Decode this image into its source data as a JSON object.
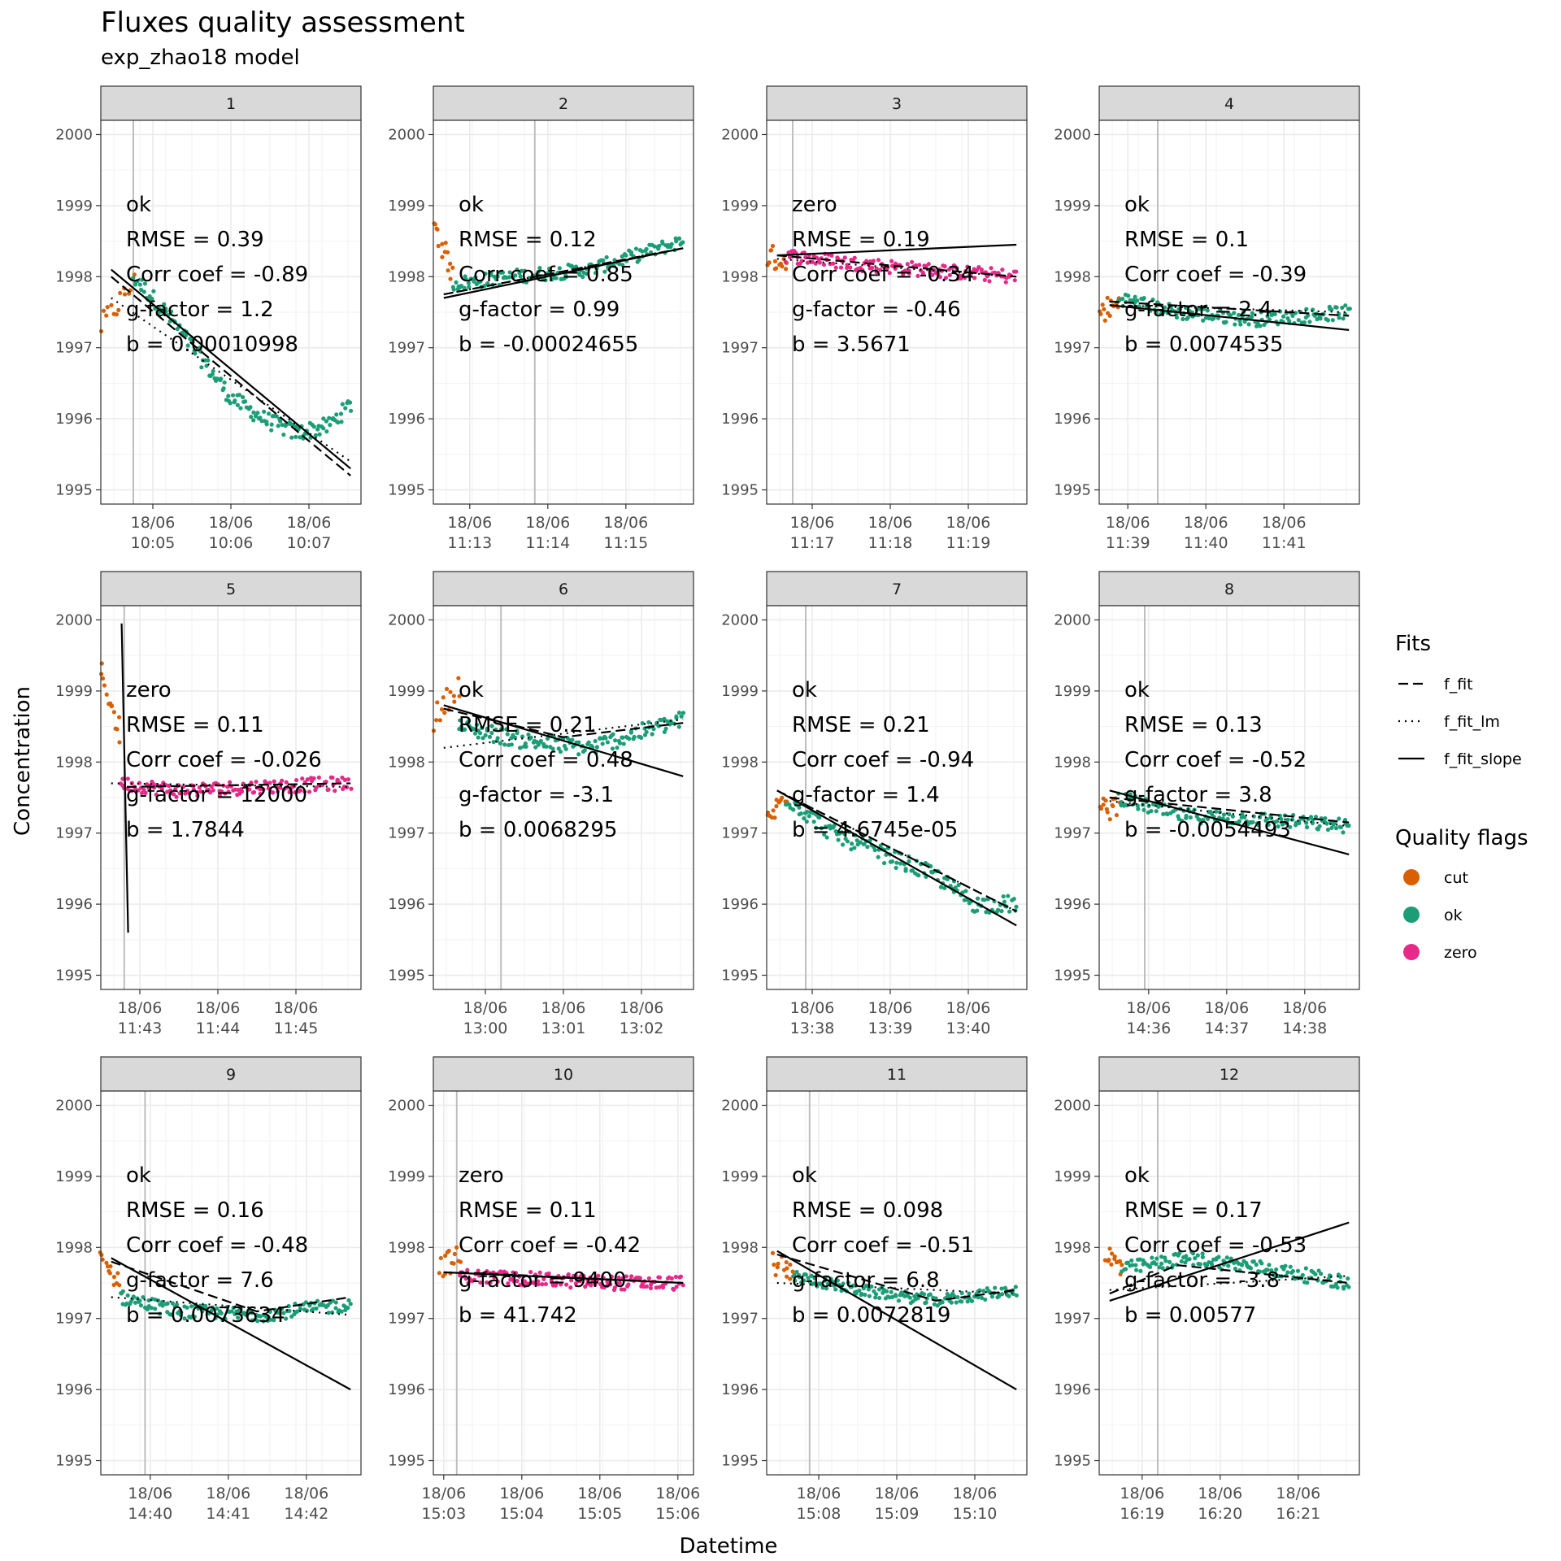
{
  "title": "Fluxes quality assessment",
  "subtitle": "exp_zhao18 model",
  "xlabel": "Datetime",
  "ylabel": "Concentration",
  "legend": {
    "fits_title": "Fits",
    "fits": [
      {
        "name": "f_fit",
        "style": "dashed"
      },
      {
        "name": "f_fit_lm",
        "style": "dotted"
      },
      {
        "name": "f_fit_slope",
        "style": "solid"
      }
    ],
    "flags_title": "Quality flags",
    "flags": [
      {
        "name": "cut",
        "color": "#D95F02"
      },
      {
        "name": "ok",
        "color": "#1B9E77"
      },
      {
        "name": "zero",
        "color": "#E7298A"
      }
    ]
  },
  "chart_data": {
    "type": "scatter",
    "facets": 12,
    "ylim": [
      1994.8,
      2000.2
    ],
    "yticks": [
      1995,
      1996,
      1997,
      1998,
      1999,
      2000
    ],
    "grid": true,
    "legend_position": "right",
    "panels": [
      {
        "id": "1",
        "flag": "ok",
        "rmse": "RMSE = 0.39",
        "corr": "Corr coef = -0.89",
        "g": "g-factor = 1.2",
        "b": "b = 0.00010998",
        "x_range": [
          0,
          200
        ],
        "ticks": [
          {
            "x": 40,
            "date": "18/06",
            "time": "10:05"
          },
          {
            "x": 100,
            "date": "18/06",
            "time": "10:06"
          },
          {
            "x": 160,
            "date": "18/06",
            "time": "10:07"
          }
        ],
        "start_cut": 25,
        "cut_trend": [
          [
            0,
            1997.3
          ],
          [
            25,
            1997.9
          ]
        ],
        "trend": [
          [
            25,
            1998.0
          ],
          [
            50,
            1997.5
          ],
          [
            75,
            1996.9
          ],
          [
            100,
            1996.3
          ],
          [
            125,
            1996.0
          ],
          [
            150,
            1995.8
          ],
          [
            175,
            1995.9
          ],
          [
            192,
            1996.2
          ]
        ],
        "noise": 0.12,
        "f_fit": [
          [
            8,
            1998.0
          ],
          [
            192,
            1995.2
          ]
        ],
        "f_fit_lm": [
          [
            8,
            1997.7
          ],
          [
            192,
            1995.4
          ]
        ],
        "f_fit_slope": [
          [
            8,
            1998.1
          ],
          [
            192,
            1995.3
          ]
        ]
      },
      {
        "id": "2",
        "flag": "ok",
        "rmse": "RMSE = 0.12",
        "corr": "Corr coef = 0.85",
        "g": "g-factor = 0.99",
        "b": "b = -0.00024655",
        "x_range": [
          0,
          200
        ],
        "ticks": [
          {
            "x": 28,
            "date": "18/06",
            "time": "11:13"
          },
          {
            "x": 88,
            "date": "18/06",
            "time": "11:14"
          },
          {
            "x": 148,
            "date": "18/06",
            "time": "11:15"
          }
        ],
        "start_cut": 78,
        "cut_trend": [
          [
            0,
            1998.8
          ],
          [
            15,
            1998.0
          ]
        ],
        "trend": [
          [
            15,
            1997.9
          ],
          [
            60,
            1998.0
          ],
          [
            120,
            1998.1
          ],
          [
            192,
            1998.5
          ]
        ],
        "noise": 0.1,
        "f_fit": [
          [
            8,
            1997.75
          ],
          [
            192,
            1998.4
          ]
        ],
        "f_fit_lm": [
          [
            8,
            1997.75
          ],
          [
            192,
            1998.4
          ]
        ],
        "f_fit_slope": [
          [
            8,
            1997.7
          ],
          [
            192,
            1998.4
          ]
        ]
      },
      {
        "id": "3",
        "flag": "zero",
        "rmse": "RMSE = 0.19",
        "corr": "Corr coef = -0.34",
        "g": "g-factor = -0.46",
        "b": "b = 3.5671",
        "x_range": [
          0,
          200
        ],
        "ticks": [
          {
            "x": 35,
            "date": "18/06",
            "time": "11:17"
          },
          {
            "x": 95,
            "date": "18/06",
            "time": "11:18"
          },
          {
            "x": 155,
            "date": "18/06",
            "time": "11:19"
          }
        ],
        "start_cut": 20,
        "cut_trend": [
          [
            0,
            1998.3
          ],
          [
            15,
            1998.2
          ]
        ],
        "trend": [
          [
            15,
            1998.3
          ],
          [
            60,
            1998.2
          ],
          [
            120,
            1998.1
          ],
          [
            192,
            1998.0
          ]
        ],
        "noise": 0.1,
        "f_fit": [
          [
            8,
            1998.3
          ],
          [
            192,
            1998.0
          ]
        ],
        "f_fit_lm": [
          [
            8,
            1998.25
          ],
          [
            192,
            1998.0
          ]
        ],
        "f_fit_slope": [
          [
            8,
            1998.3
          ],
          [
            192,
            1998.45
          ]
        ]
      },
      {
        "id": "4",
        "flag": "ok",
        "rmse": "RMSE = 0.1",
        "corr": "Corr coef = -0.39",
        "g": "g-factor = 2.4",
        "b": "b = 0.0074535",
        "x_range": [
          0,
          200
        ],
        "ticks": [
          {
            "x": 22,
            "date": "18/06",
            "time": "11:39"
          },
          {
            "x": 82,
            "date": "18/06",
            "time": "11:40"
          },
          {
            "x": 142,
            "date": "18/06",
            "time": "11:41"
          }
        ],
        "start_cut": 45,
        "cut_trend": [
          [
            0,
            1997.5
          ],
          [
            15,
            1997.6
          ]
        ],
        "trend": [
          [
            15,
            1997.7
          ],
          [
            60,
            1997.5
          ],
          [
            120,
            1997.4
          ],
          [
            192,
            1997.5
          ]
        ],
        "noise": 0.1,
        "f_fit": [
          [
            8,
            1997.65
          ],
          [
            192,
            1997.45
          ]
        ],
        "f_fit_lm": [
          [
            8,
            1997.6
          ],
          [
            192,
            1997.5
          ]
        ],
        "f_fit_slope": [
          [
            8,
            1997.6
          ],
          [
            192,
            1997.25
          ]
        ]
      },
      {
        "id": "5",
        "flag": "zero",
        "rmse": "RMSE = 0.11",
        "corr": "Corr coef = -0.026",
        "g": "g-factor = 12000",
        "b": "b = 1.7844",
        "x_range": [
          0,
          200
        ],
        "ticks": [
          {
            "x": 30,
            "date": "18/06",
            "time": "11:43"
          },
          {
            "x": 90,
            "date": "18/06",
            "time": "11:44"
          },
          {
            "x": 150,
            "date": "18/06",
            "time": "11:45"
          }
        ],
        "start_cut": 18,
        "cut_trend": [
          [
            0,
            1999.3
          ],
          [
            15,
            1998.4
          ]
        ],
        "trend": [
          [
            15,
            1997.7
          ],
          [
            60,
            1997.6
          ],
          [
            120,
            1997.65
          ],
          [
            192,
            1997.7
          ]
        ],
        "noise": 0.1,
        "f_fit": [
          [
            20,
            1997.65
          ],
          [
            192,
            1997.7
          ]
        ],
        "f_fit_lm": [
          [
            8,
            1997.7
          ],
          [
            192,
            1997.65
          ]
        ],
        "f_fit_slope": [
          [
            16,
            1999.95
          ],
          [
            21,
            1995.6
          ]
        ]
      },
      {
        "id": "6",
        "flag": "ok",
        "rmse": "RMSE = 0.21",
        "corr": "Corr coef = 0.48",
        "g": "g-factor = -3.1",
        "b": "b = 0.0068295",
        "x_range": [
          0,
          200
        ],
        "ticks": [
          {
            "x": 40,
            "date": "18/06",
            "time": "13:00"
          },
          {
            "x": 100,
            "date": "18/06",
            "time": "13:01"
          },
          {
            "x": 160,
            "date": "18/06",
            "time": "13:02"
          }
        ],
        "start_cut": 52,
        "cut_trend": [
          [
            0,
            1998.6
          ],
          [
            20,
            1999.1
          ]
        ],
        "trend": [
          [
            20,
            1998.5
          ],
          [
            70,
            1998.3
          ],
          [
            120,
            1998.2
          ],
          [
            192,
            1998.6
          ]
        ],
        "noise": 0.12,
        "f_fit": [
          [
            8,
            1998.75
          ],
          [
            100,
            1998.35
          ],
          [
            192,
            1998.55
          ]
        ],
        "f_fit_lm": [
          [
            8,
            1998.2
          ],
          [
            192,
            1998.6
          ]
        ],
        "f_fit_slope": [
          [
            8,
            1998.8
          ],
          [
            192,
            1997.8
          ]
        ]
      },
      {
        "id": "7",
        "flag": "ok",
        "rmse": "RMSE = 0.21",
        "corr": "Corr coef = -0.94",
        "g": "g-factor = 1.4",
        "b": "b = 4.6745e-05",
        "x_range": [
          0,
          200
        ],
        "ticks": [
          {
            "x": 35,
            "date": "18/06",
            "time": "13:38"
          },
          {
            "x": 95,
            "date": "18/06",
            "time": "13:39"
          },
          {
            "x": 155,
            "date": "18/06",
            "time": "13:40"
          }
        ],
        "start_cut": 30,
        "cut_trend": [
          [
            0,
            1997.2
          ],
          [
            15,
            1997.5
          ]
        ],
        "trend": [
          [
            15,
            1997.5
          ],
          [
            50,
            1997.0
          ],
          [
            90,
            1996.7
          ],
          [
            130,
            1996.4
          ],
          [
            160,
            1996.0
          ],
          [
            192,
            1996.0
          ]
        ],
        "noise": 0.12,
        "f_fit": [
          [
            8,
            1997.6
          ],
          [
            192,
            1995.9
          ]
        ],
        "f_fit_lm": [
          [
            8,
            1997.6
          ],
          [
            192,
            1995.9
          ]
        ],
        "f_fit_slope": [
          [
            8,
            1997.6
          ],
          [
            192,
            1995.7
          ]
        ]
      },
      {
        "id": "8",
        "flag": "ok",
        "rmse": "RMSE = 0.13",
        "corr": "Corr coef = -0.52",
        "g": "g-factor = 3.8",
        "b": "b = -0.0054493",
        "x_range": [
          0,
          200
        ],
        "ticks": [
          {
            "x": 38,
            "date": "18/06",
            "time": "14:36"
          },
          {
            "x": 98,
            "date": "18/06",
            "time": "14:37"
          },
          {
            "x": 158,
            "date": "18/06",
            "time": "14:38"
          }
        ],
        "start_cut": 35,
        "cut_trend": [
          [
            0,
            1997.3
          ],
          [
            15,
            1997.4
          ]
        ],
        "trend": [
          [
            15,
            1997.5
          ],
          [
            60,
            1997.25
          ],
          [
            120,
            1997.2
          ],
          [
            192,
            1997.1
          ]
        ],
        "noise": 0.1,
        "f_fit": [
          [
            8,
            1997.5
          ],
          [
            192,
            1997.15
          ]
        ],
        "f_fit_lm": [
          [
            8,
            1997.45
          ],
          [
            192,
            1997.1
          ]
        ],
        "f_fit_slope": [
          [
            8,
            1997.6
          ],
          [
            192,
            1996.7
          ]
        ]
      },
      {
        "id": "9",
        "flag": "ok",
        "rmse": "RMSE = 0.16",
        "corr": "Corr coef = -0.48",
        "g": "g-factor = 7.6",
        "b": "b = 0.0073634",
        "x_range": [
          0,
          200
        ],
        "ticks": [
          {
            "x": 38,
            "date": "18/06",
            "time": "14:40"
          },
          {
            "x": 98,
            "date": "18/06",
            "time": "14:41"
          },
          {
            "x": 158,
            "date": "18/06",
            "time": "14:42"
          }
        ],
        "start_cut": 34,
        "cut_trend": [
          [
            0,
            1997.8
          ],
          [
            15,
            1997.5
          ]
        ],
        "trend": [
          [
            15,
            1997.3
          ],
          [
            60,
            1997.1
          ],
          [
            120,
            1997.05
          ],
          [
            192,
            1997.2
          ]
        ],
        "noise": 0.1,
        "f_fit": [
          [
            8,
            1997.8
          ],
          [
            120,
            1997.1
          ],
          [
            192,
            1997.3
          ]
        ],
        "f_fit_lm": [
          [
            8,
            1997.3
          ],
          [
            192,
            1997.05
          ]
        ],
        "f_fit_slope": [
          [
            8,
            1997.85
          ],
          [
            192,
            1996.0
          ]
        ]
      },
      {
        "id": "10",
        "flag": "zero",
        "rmse": "RMSE = 0.11",
        "corr": "Corr coef = -0.42",
        "g": "g-factor = 9400",
        "b": "b = 41.742",
        "x_range": [
          0,
          200
        ],
        "ticks": [
          {
            "x": 8,
            "date": "18/06",
            "time": "15:03"
          },
          {
            "x": 68,
            "date": "18/06",
            "time": "15:04"
          },
          {
            "x": 128,
            "date": "18/06",
            "time": "15:05"
          },
          {
            "x": 188,
            "date": "18/06",
            "time": "15:06"
          }
        ],
        "start_cut": 18,
        "cut_trend": [
          [
            5,
            1997.75
          ],
          [
            20,
            1997.85
          ]
        ],
        "trend": [
          [
            20,
            1997.6
          ],
          [
            80,
            1997.55
          ],
          [
            140,
            1997.5
          ],
          [
            192,
            1997.5
          ]
        ],
        "noise": 0.1,
        "f_fit": [
          [
            20,
            1997.65
          ],
          [
            192,
            1997.5
          ]
        ],
        "f_fit_lm": [
          [
            8,
            1997.65
          ],
          [
            192,
            1997.5
          ]
        ],
        "f_fit_slope": [
          [
            8,
            1997.65
          ],
          [
            192,
            1997.5
          ]
        ]
      },
      {
        "id": "11",
        "flag": "ok",
        "rmse": "RMSE = 0.098",
        "corr": "Corr coef = -0.51",
        "g": "g-factor = 6.8",
        "b": "b = 0.0072819",
        "x_range": [
          0,
          200
        ],
        "ticks": [
          {
            "x": 40,
            "date": "18/06",
            "time": "15:08"
          },
          {
            "x": 100,
            "date": "18/06",
            "time": "15:09"
          },
          {
            "x": 160,
            "date": "18/06",
            "time": "15:10"
          }
        ],
        "start_cut": 33,
        "cut_trend": [
          [
            5,
            1997.8
          ],
          [
            20,
            1997.6
          ]
        ],
        "trend": [
          [
            20,
            1997.6
          ],
          [
            70,
            1997.4
          ],
          [
            130,
            1997.25
          ],
          [
            192,
            1997.4
          ]
        ],
        "noise": 0.08,
        "f_fit": [
          [
            8,
            1997.9
          ],
          [
            130,
            1997.25
          ],
          [
            192,
            1997.4
          ]
        ],
        "f_fit_lm": [
          [
            8,
            1997.5
          ],
          [
            192,
            1997.35
          ]
        ],
        "f_fit_slope": [
          [
            8,
            1997.95
          ],
          [
            192,
            1996.0
          ]
        ]
      },
      {
        "id": "12",
        "flag": "ok",
        "rmse": "RMSE = 0.17",
        "corr": "Corr coef = -0.53",
        "g": "g-factor = -3.8",
        "b": "b = 0.00577",
        "x_range": [
          0,
          200
        ],
        "ticks": [
          {
            "x": 33,
            "date": "18/06",
            "time": "16:19"
          },
          {
            "x": 93,
            "date": "18/06",
            "time": "16:20"
          },
          {
            "x": 153,
            "date": "18/06",
            "time": "16:21"
          }
        ],
        "start_cut": 45,
        "cut_trend": [
          [
            5,
            1997.9
          ],
          [
            18,
            1997.7
          ]
        ],
        "trend": [
          [
            18,
            1997.7
          ],
          [
            70,
            1997.85
          ],
          [
            130,
            1997.7
          ],
          [
            192,
            1997.5
          ]
        ],
        "noise": 0.1,
        "f_fit": [
          [
            8,
            1997.35
          ],
          [
            60,
            1997.75
          ],
          [
            192,
            1997.5
          ]
        ],
        "f_fit_lm": [
          [
            8,
            1997.4
          ],
          [
            192,
            1997.6
          ]
        ],
        "f_fit_slope": [
          [
            8,
            1997.25
          ],
          [
            192,
            1998.35
          ]
        ]
      }
    ]
  }
}
